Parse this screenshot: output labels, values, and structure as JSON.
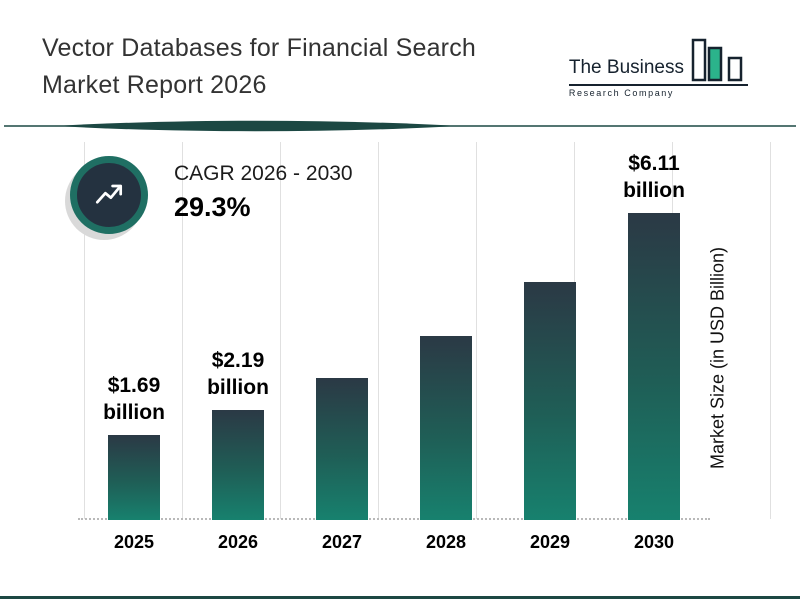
{
  "header": {
    "title_line1": "Vector Databases for Financial Search",
    "title_line2": "Market Report 2026",
    "logo": {
      "name_line1": "The Business",
      "name_line2": "Research Company"
    }
  },
  "cagr": {
    "label": "CAGR 2026 - 2030",
    "value": "29.3%"
  },
  "chart_data": {
    "type": "bar",
    "title": "Vector Databases for Financial Search Market Report 2026",
    "categories": [
      "2025",
      "2026",
      "2027",
      "2028",
      "2029",
      "2030"
    ],
    "values": [
      1.69,
      2.19,
      2.83,
      3.66,
      4.73,
      6.11
    ],
    "bar_labels": [
      {
        "amount": "$1.69",
        "unit": "billion"
      },
      {
        "amount": "$2.19",
        "unit": "billion"
      },
      null,
      null,
      null,
      {
        "amount": "$6.11",
        "unit": "billion"
      }
    ],
    "xlabel": "",
    "ylabel": "Market Size (in USD Billion)",
    "ylim": [
      0,
      6.5
    ],
    "grid": "vertical",
    "legend": "none",
    "bar_gradient_top": "#2b3945",
    "bar_gradient_bottom": "#17816e"
  },
  "colors": {
    "accent_teal": "#1e8273",
    "divider": "#1c4843",
    "cagr_ring": "#1f6f63",
    "cagr_inner": "#243240",
    "logo_navy": "#16222e",
    "logo_green": "#2bb38b",
    "gridline": "#e0e0e0"
  }
}
